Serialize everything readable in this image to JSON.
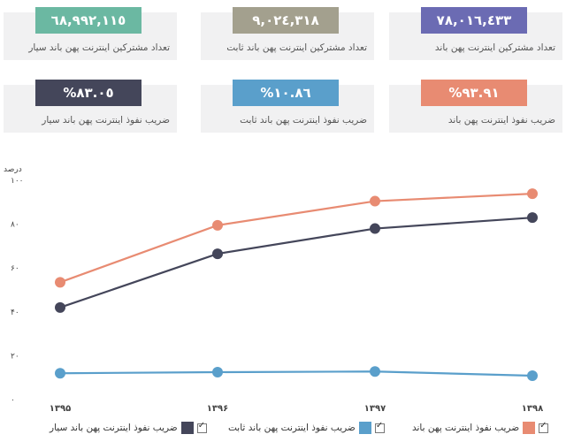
{
  "cards": [
    {
      "value": "٦٨,٩٩٢,١١٥",
      "label": "تعداد مشترکین اینترنت پهن باند سیار",
      "color": "#6bb8a2"
    },
    {
      "value": "٩,٠٢٤,٣١٨",
      "label": "تعداد مشترکین اینترنت پهن باند ثابت",
      "color": "#a3a08e"
    },
    {
      "value": "٧٨,٠١٦,٤٣٣",
      "label": "تعداد مشترکین اینترنت پهن باند",
      "color": "#6b6bb3"
    },
    {
      "value": "%٨٣.٠٥",
      "label": "ضریب نفوذ اینترنت پهن باند سیار",
      "color": "#44465a"
    },
    {
      "value": "%١٠.٨٦",
      "label": "ضریب نفوذ اینترنت پهن باند ثابت",
      "color": "#5a9fcb"
    },
    {
      "value": "%٩٣.٩١",
      "label": "ضریب نفوذ اینترنت پهن باند",
      "color": "#e88b72"
    }
  ],
  "chart_data": {
    "type": "line",
    "ylabel": "درصد",
    "ylim": [
      0,
      100
    ],
    "yticks": [
      "۰",
      "۲۰",
      "۴۰",
      "۶۰",
      "۸۰",
      "۱۰۰"
    ],
    "x": [
      "۱۳۹۵",
      "۱۳۹۶",
      "۱۳۹۷",
      "۱۳۹۸"
    ],
    "grid": false,
    "legend_position": "bottom",
    "series": [
      {
        "name": "ضریب نفوذ اینترنت پهن باند",
        "color": "#e88b72",
        "values": [
          53.5,
          79.5,
          90.5,
          93.9
        ]
      },
      {
        "name": "ضریب نفوذ اینترنت پهن باند سیار",
        "color": "#44465a",
        "values": [
          42,
          66.5,
          78,
          83
        ]
      },
      {
        "name": "ضریب نفوذ اینترنت پهن باند ثابت",
        "color": "#5a9fcb",
        "values": [
          12,
          12.5,
          12.8,
          10.9
        ]
      }
    ]
  }
}
